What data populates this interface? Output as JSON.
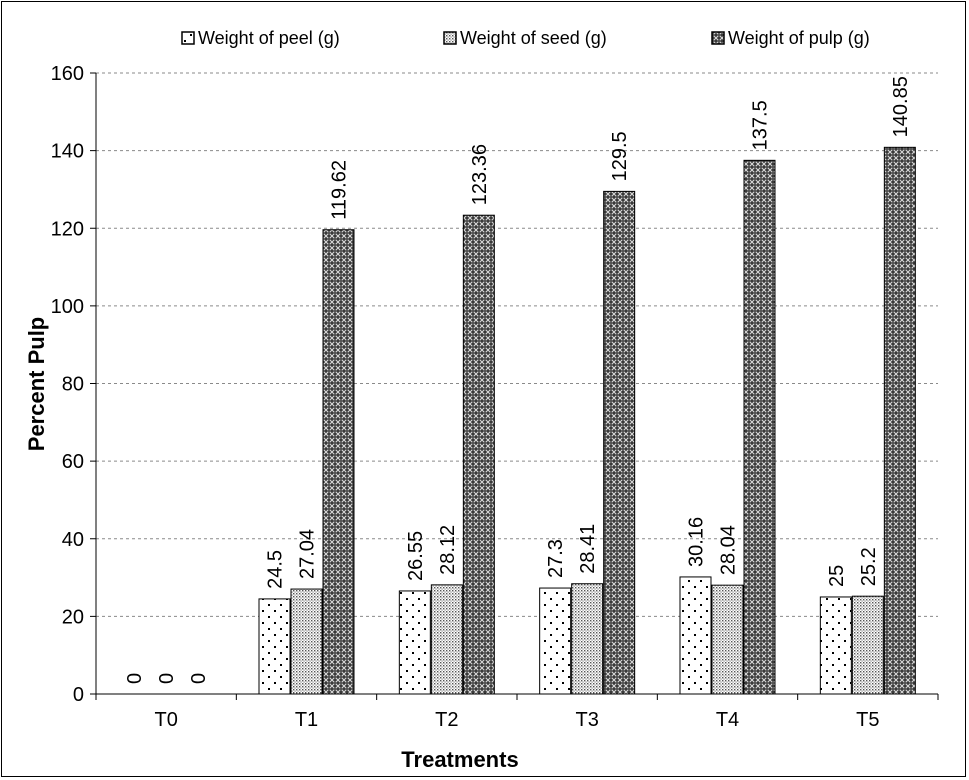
{
  "chart_data": {
    "type": "bar",
    "title": "",
    "xlabel": "Treatments",
    "ylabel": "Percent Pulp",
    "categories": [
      "T0",
      "T1",
      "T2",
      "T3",
      "T4",
      "T5"
    ],
    "ylim": [
      0,
      160
    ],
    "yticks": [
      0,
      20,
      40,
      60,
      80,
      100,
      120,
      140,
      160
    ],
    "grid": "horizontal dashed",
    "legend_position": "top",
    "series": [
      {
        "name": "Weight of peel (g)",
        "values": [
          0,
          24.5,
          26.55,
          27.3,
          30.16,
          25
        ],
        "labels": [
          "0",
          "24.5",
          "26.55",
          "27.3",
          "30.16",
          "25"
        ],
        "pattern": "sparse-dots"
      },
      {
        "name": "Weight of seed (g)",
        "values": [
          0,
          27.04,
          28.12,
          28.41,
          28.04,
          25.2
        ],
        "labels": [
          "0",
          "27.04",
          "28.12",
          "28.41",
          "28.04",
          "25.2"
        ],
        "pattern": "dense-dots"
      },
      {
        "name": "Weight of pulp (g)",
        "values": [
          0,
          119.62,
          123.36,
          129.5,
          137.5,
          140.85
        ],
        "labels": [
          "0",
          "119.62",
          "123.36",
          "129.5",
          "137.5",
          "140.85"
        ],
        "pattern": "crosshatch-dark"
      }
    ]
  }
}
